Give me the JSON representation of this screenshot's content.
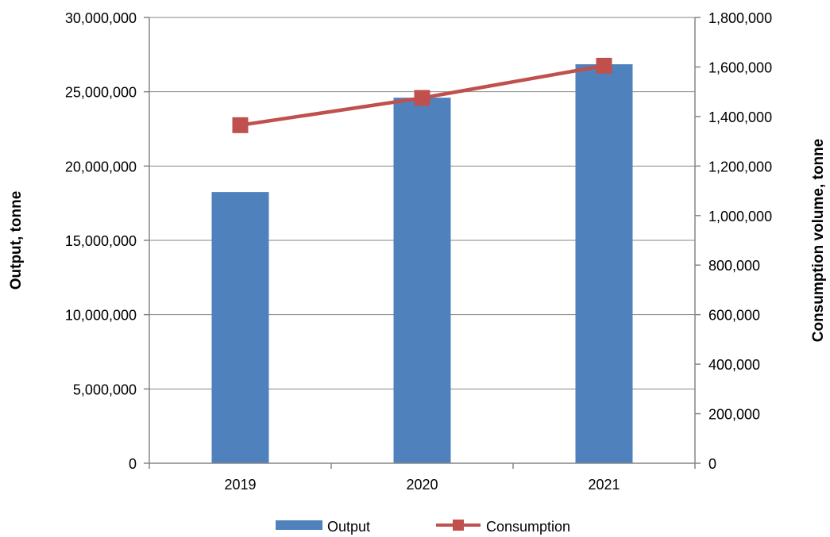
{
  "chart_data": {
    "type": "bar",
    "categories": [
      "2019",
      "2020",
      "2021"
    ],
    "series": [
      {
        "name": "Output",
        "type": "bar",
        "axis": "left",
        "values": [
          18250000,
          24600000,
          26850000
        ],
        "color": "#4F81BD"
      },
      {
        "name": "Consumption",
        "type": "line",
        "axis": "right",
        "values": [
          1365000,
          1475000,
          1605000
        ],
        "color": "#C0504D"
      }
    ],
    "ylabel": "Output, tonne",
    "y2label": "Consumption volume, tonne",
    "ylim": [
      0,
      30000000
    ],
    "y2lim": [
      0,
      1800000
    ],
    "yticks": [
      "0",
      "5,000,000",
      "10,000,000",
      "15,000,000",
      "20,000,000",
      "25,000,000",
      "30,000,000"
    ],
    "y2ticks": [
      "0",
      "200,000",
      "400,000",
      "600,000",
      "800,000",
      "1,000,000",
      "1,200,000",
      "1,400,000",
      "1,600,000",
      "1,800,000"
    ],
    "grid": true,
    "legend": "bottom"
  }
}
